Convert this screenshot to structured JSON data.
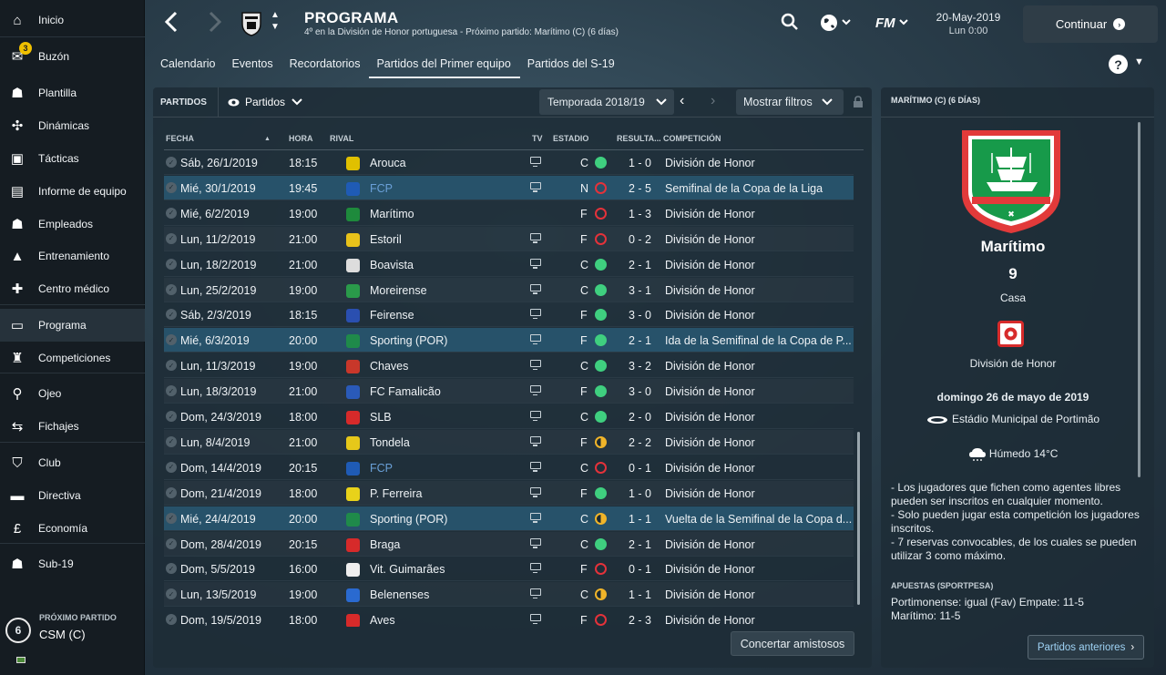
{
  "sidebar": {
    "items": [
      {
        "label": "Inicio",
        "icon": "home-icon",
        "glyph": "⌂"
      },
      {
        "label": "Buzón",
        "icon": "inbox-icon",
        "glyph": "✉",
        "badge": "3"
      },
      {
        "label": "Plantilla",
        "icon": "squad-icon",
        "glyph": "☗"
      },
      {
        "label": "Dinámicas",
        "icon": "dynamics-icon",
        "glyph": "✣"
      },
      {
        "label": "Tácticas",
        "icon": "tactics-icon",
        "glyph": "▣"
      },
      {
        "label": "Informe de equipo",
        "icon": "team-report-icon",
        "glyph": "▤"
      },
      {
        "label": "Empleados",
        "icon": "staff-icon",
        "glyph": "☗"
      },
      {
        "label": "Entrenamiento",
        "icon": "training-icon",
        "glyph": "▲"
      },
      {
        "label": "Centro médico",
        "icon": "medical-icon",
        "glyph": "✚"
      },
      {
        "label": "Programa",
        "icon": "schedule-icon",
        "glyph": "▭"
      },
      {
        "label": "Competiciones",
        "icon": "trophy-icon",
        "glyph": "♜"
      },
      {
        "label": "Ojeo",
        "icon": "scouting-icon",
        "glyph": "⚲"
      },
      {
        "label": "Fichajes",
        "icon": "transfers-icon",
        "glyph": "⇆"
      },
      {
        "label": "Club",
        "icon": "club-icon",
        "glyph": "⛉"
      },
      {
        "label": "Directiva",
        "icon": "board-icon",
        "glyph": "▬"
      },
      {
        "label": "Economía",
        "icon": "finances-icon",
        "glyph": "£"
      },
      {
        "label": "Sub-19",
        "icon": "u19-icon",
        "glyph": "☗"
      }
    ],
    "next_match": {
      "title": "PRÓXIMO PARTIDO",
      "days": "6",
      "opponent": "CSM (C)"
    }
  },
  "header": {
    "title": "PROGRAMA",
    "subtitle": "4º en la División de Honor portuguesa - Próximo partido: Marítimo (C)  (6 días)",
    "date": "20-May-2019",
    "time": "Lun 0:00",
    "continue_label": "Continuar",
    "fm_label": "FM"
  },
  "tabs": [
    "Calendario",
    "Eventos",
    "Recordatorios",
    "Partidos del Primer equipo",
    "Partidos del S-19"
  ],
  "active_tab": 3,
  "toolbar": {
    "title": "PARTIDOS",
    "view_label": "Partidos",
    "season": "Temporada 2018/19",
    "filters": "Mostrar filtros"
  },
  "columns": [
    "FECHA",
    "HORA",
    "RIVAL",
    "TV",
    "ESTADIO",
    "RESULTA...",
    "COMPETICIÓN"
  ],
  "matches": [
    {
      "date": "Sáb, 26/1/2019",
      "time": "18:15",
      "opp": "Arouca",
      "tv": true,
      "venue": "C",
      "res": "w",
      "score": "1 - 0",
      "comp": "División de Honor",
      "crest": "#e0c000"
    },
    {
      "date": "Mié, 30/1/2019",
      "time": "19:45",
      "opp": "FCP",
      "tv": true,
      "venue": "N",
      "res": "l",
      "score": "2 - 5",
      "comp": "Semifinal de la Copa de la Liga",
      "crest": "#1f5bb5",
      "hl": true,
      "link": true
    },
    {
      "date": "Mié, 6/2/2019",
      "time": "19:00",
      "opp": "Marítimo",
      "tv": false,
      "venue": "F",
      "res": "l",
      "score": "1 - 3",
      "comp": "División de Honor",
      "crest": "#1e8a3c"
    },
    {
      "date": "Lun, 11/2/2019",
      "time": "21:00",
      "opp": "Estoril",
      "tv": true,
      "venue": "F",
      "res": "l",
      "score": "0 - 2",
      "comp": "División de Honor",
      "crest": "#e8c21a"
    },
    {
      "date": "Lun, 18/2/2019",
      "time": "21:00",
      "opp": "Boavista",
      "tv": true,
      "venue": "C",
      "res": "w",
      "score": "2 - 1",
      "comp": "División de Honor",
      "crest": "#dddddd"
    },
    {
      "date": "Lun, 25/2/2019",
      "time": "19:00",
      "opp": "Moreirense",
      "tv": true,
      "venue": "C",
      "res": "w",
      "score": "3 - 1",
      "comp": "División de Honor",
      "crest": "#2a9a4a"
    },
    {
      "date": "Sáb, 2/3/2019",
      "time": "18:15",
      "opp": "Feirense",
      "tv": true,
      "venue": "F",
      "res": "w",
      "score": "3 - 0",
      "comp": "División de Honor",
      "crest": "#2a4fb0"
    },
    {
      "date": "Mié, 6/3/2019",
      "time": "20:00",
      "opp": "Sporting (POR)",
      "tv": true,
      "venue": "F",
      "res": "w",
      "score": "2 - 1",
      "comp": "Ida de la Semifinal de la Copa de P...",
      "crest": "#1f8a4a",
      "hl": true
    },
    {
      "date": "Lun, 11/3/2019",
      "time": "19:00",
      "opp": "Chaves",
      "tv": true,
      "venue": "C",
      "res": "w",
      "score": "3 - 2",
      "comp": "División de Honor",
      "crest": "#c8372a"
    },
    {
      "date": "Lun, 18/3/2019",
      "time": "21:00",
      "opp": "FC Famalicão",
      "tv": true,
      "venue": "F",
      "res": "w",
      "score": "3 - 0",
      "comp": "División de Honor",
      "crest": "#2a5ab8"
    },
    {
      "date": "Dom, 24/3/2019",
      "time": "18:00",
      "opp": "SLB",
      "tv": true,
      "venue": "C",
      "res": "w",
      "score": "2 - 0",
      "comp": "División de Honor",
      "crest": "#d62a2a"
    },
    {
      "date": "Lun, 8/4/2019",
      "time": "21:00",
      "opp": "Tondela",
      "tv": true,
      "venue": "F",
      "res": "d",
      "score": "2 - 2",
      "comp": "División de Honor",
      "crest": "#e6c81a"
    },
    {
      "date": "Dom, 14/4/2019",
      "time": "20:15",
      "opp": "FCP",
      "tv": true,
      "venue": "C",
      "res": "l",
      "score": "0 - 1",
      "comp": "División de Honor",
      "crest": "#1f5bb5",
      "link": true
    },
    {
      "date": "Dom, 21/4/2019",
      "time": "18:00",
      "opp": "P. Ferreira",
      "tv": true,
      "venue": "F",
      "res": "w",
      "score": "1 - 0",
      "comp": "División de Honor",
      "crest": "#e8d21a"
    },
    {
      "date": "Mié, 24/4/2019",
      "time": "20:00",
      "opp": "Sporting (POR)",
      "tv": true,
      "venue": "C",
      "res": "d",
      "score": "1 - 1",
      "comp": "Vuelta de la Semifinal de la Copa d...",
      "crest": "#1f8a4a",
      "hl": true
    },
    {
      "date": "Dom, 28/4/2019",
      "time": "20:15",
      "opp": "Braga",
      "tv": true,
      "venue": "C",
      "res": "w",
      "score": "2 - 1",
      "comp": "División de Honor",
      "crest": "#d62a2a"
    },
    {
      "date": "Dom, 5/5/2019",
      "time": "16:00",
      "opp": "Vit. Guimarães",
      "tv": true,
      "venue": "F",
      "res": "l",
      "score": "0 - 1",
      "comp": "División de Honor",
      "crest": "#eeeeee"
    },
    {
      "date": "Lun, 13/5/2019",
      "time": "19:00",
      "opp": "Belenenses",
      "tv": true,
      "venue": "C",
      "res": "d",
      "score": "1 - 1",
      "comp": "División de Honor",
      "crest": "#2a6ad0"
    },
    {
      "date": "Dom, 19/5/2019",
      "time": "18:00",
      "opp": "Aves",
      "tv": true,
      "venue": "F",
      "res": "l",
      "score": "2 - 3",
      "comp": "División de Honor",
      "crest": "#d62a2a"
    }
  ],
  "friendlies_label": "Concertar amistosos",
  "side": {
    "title": "MARÍTIMO (C)  (6 DÍAS)",
    "opp_name": "Marítimo",
    "opp_position": "9",
    "venue": "Casa",
    "competition": "División de Honor",
    "date": "domingo 26 de mayo de 2019",
    "stadium": "Estádio Municipal de Portimão",
    "weather": "Húmedo 14°C",
    "notes": [
      "- Los jugadores que fichen como agentes libres pueden ser inscritos en cualquier momento.",
      "- Solo pueden jugar esta competición los jugadores inscritos.",
      "- 7 reservas convocables, de los cuales se pueden utilizar 3 como máximo."
    ],
    "bets_title": "APUESTAS (SPORTPESA)",
    "bets": [
      "Portimonense: igual (Fav) Empate: 11-5",
      "Marítimo: 11-5"
    ],
    "prev_label": "Partidos anteriores"
  }
}
